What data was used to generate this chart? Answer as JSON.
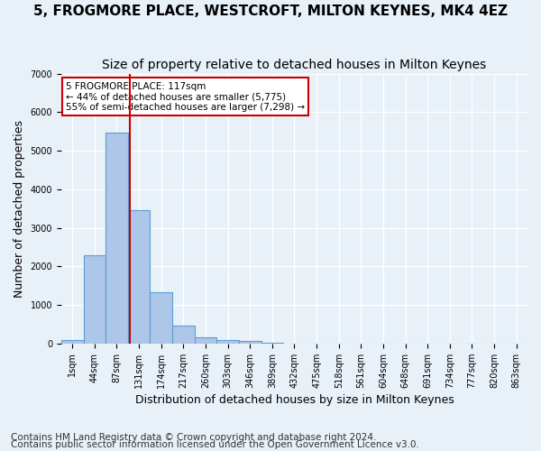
{
  "title": "5, FROGMORE PLACE, WESTCROFT, MILTON KEYNES, MK4 4EZ",
  "subtitle": "Size of property relative to detached houses in Milton Keynes",
  "xlabel": "Distribution of detached houses by size in Milton Keynes",
  "ylabel": "Number of detached properties",
  "footnote1": "Contains HM Land Registry data © Crown copyright and database right 2024.",
  "footnote2": "Contains public sector information licensed under the Open Government Licence v3.0.",
  "bin_labels": [
    "1sqm",
    "44sqm",
    "87sqm",
    "131sqm",
    "174sqm",
    "217sqm",
    "260sqm",
    "303sqm",
    "346sqm",
    "389sqm",
    "432sqm",
    "475sqm",
    "518sqm",
    "561sqm",
    "604sqm",
    "648sqm",
    "691sqm",
    "734sqm",
    "777sqm",
    "820sqm",
    "863sqm"
  ],
  "bar_values": [
    90,
    2280,
    5480,
    3450,
    1320,
    470,
    160,
    90,
    55,
    30,
    0,
    0,
    0,
    0,
    0,
    0,
    0,
    0,
    0,
    0,
    0
  ],
  "bar_color": "#aec6e8",
  "bar_edge_color": "#5a9fd4",
  "vline_x": 2.58,
  "annotation_text": "5 FROGMORE PLACE: 117sqm\n← 44% of detached houses are smaller (5,775)\n55% of semi-detached houses are larger (7,298) →",
  "annotation_box_color": "#ffffff",
  "annotation_box_edge": "#cc0000",
  "vline_color": "#cc0000",
  "ylim": [
    0,
    7000
  ],
  "yticks": [
    0,
    1000,
    2000,
    3000,
    4000,
    5000,
    6000,
    7000
  ],
  "bg_color": "#e8f0f8",
  "grid_color": "#ffffff",
  "title_fontsize": 11,
  "subtitle_fontsize": 10,
  "axis_label_fontsize": 9,
  "tick_fontsize": 7,
  "footnote_fontsize": 7.5
}
